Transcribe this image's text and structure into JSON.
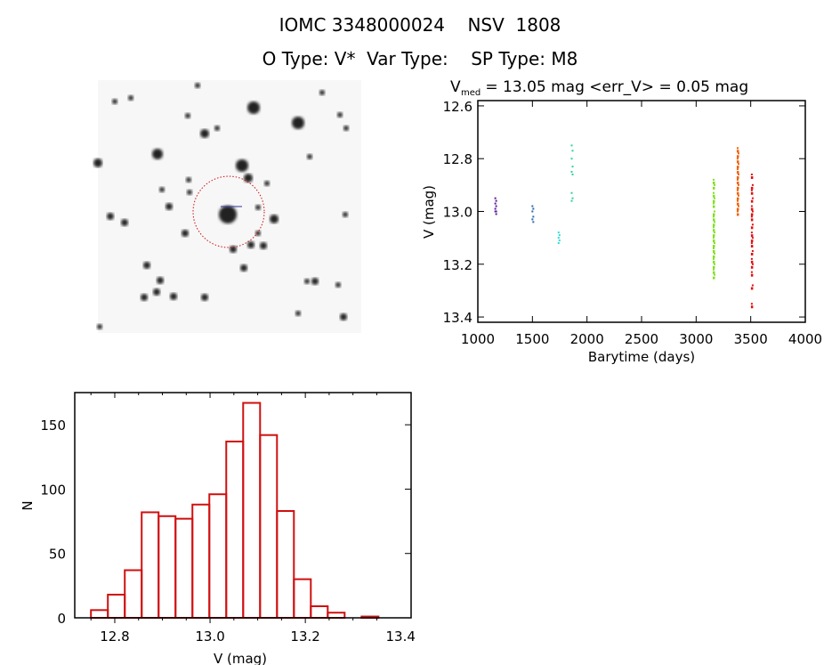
{
  "header": {
    "title": "IOMC 3348000024    NSV  1808",
    "subtitle": "O Type: V*  Var Type:    SP Type: M8"
  },
  "chart_data": [
    {
      "type": "scatter",
      "title_main": "V",
      "title_sub": "med",
      "title_rest": " = 13.05 mag <err_V> = 0.05 mag",
      "xlabel": "Barytime (days)",
      "ylabel": "V (mag)",
      "xlim": [
        1000,
        4000
      ],
      "ylim": [
        12.58,
        13.42
      ],
      "y_inverted": true,
      "xticks": [
        "1000",
        "1500",
        "2000",
        "2500",
        "3000",
        "3500",
        "4000"
      ],
      "yticks": [
        "12.6",
        "12.8",
        "13.0",
        "13.2",
        "13.4"
      ],
      "series": [
        {
          "color": "#5a1a9a",
          "x": 1160,
          "y": [
            12.95,
            12.96,
            12.97,
            12.98,
            12.99,
            13.0,
            13.0,
            13.01
          ]
        },
        {
          "color": "#2a6ab0",
          "x": 1500,
          "y": [
            12.98,
            12.99,
            13.0,
            13.02,
            13.03,
            13.04
          ]
        },
        {
          "color": "#30d8d8",
          "x": 1740,
          "y": [
            13.08,
            13.09,
            13.1,
            13.11,
            13.12
          ]
        },
        {
          "color": "#30d0a0",
          "x": 1860,
          "y": [
            12.75,
            12.77,
            12.8,
            12.83,
            12.85,
            12.86,
            12.93,
            12.95,
            12.96
          ]
        },
        {
          "color": "#80e020",
          "x": 3160,
          "y": [
            12.88,
            12.9,
            12.93,
            12.95,
            12.97,
            13.0,
            13.02,
            13.04,
            13.06,
            13.08,
            13.1,
            13.12,
            13.14,
            13.16,
            13.18,
            13.2,
            13.22,
            13.24
          ]
        },
        {
          "color": "#f06000",
          "x": 3380,
          "y": [
            12.76,
            12.78,
            12.8,
            12.82,
            12.84,
            12.86,
            12.88,
            12.9,
            12.92,
            12.94,
            12.96,
            12.98,
            13.0
          ]
        },
        {
          "color": "#e01010",
          "x": 3510,
          "y": [
            12.86,
            12.9,
            12.92,
            12.95,
            12.98,
            13.0,
            13.02,
            13.05,
            13.08,
            13.1,
            13.12,
            13.15,
            13.18,
            13.2,
            13.23,
            13.28,
            13.35
          ]
        }
      ]
    },
    {
      "type": "bar",
      "subtype": "histogram",
      "xlabel": "V (mag)",
      "ylabel": "N",
      "xlim": [
        12.716,
        13.422
      ],
      "ylim": [
        0,
        175
      ],
      "xticks": [
        "12.8",
        "13.0",
        "13.2",
        "13.4"
      ],
      "yticks": [
        "0",
        "50",
        "100",
        "150"
      ],
      "bin_start": 12.75,
      "bin_width": 0.0355,
      "values": [
        6,
        18,
        37,
        82,
        79,
        77,
        88,
        96,
        137,
        167,
        142,
        83,
        30,
        9,
        4,
        0,
        1
      ],
      "color": "#d01010"
    }
  ],
  "finder_image": {
    "marker_color": "#d01010"
  }
}
